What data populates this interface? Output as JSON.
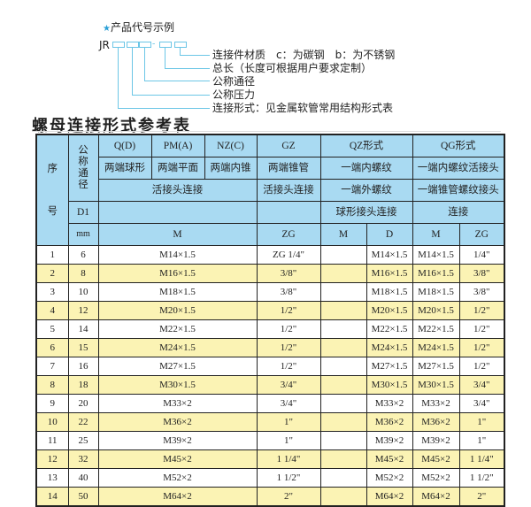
{
  "code_example": {
    "title": "产品代号示例",
    "prefix": "JR",
    "dash": "-",
    "labels": [
      "连接件材质　c：为碳钢　b：为不锈钢",
      "总长（长度可根据用户要求定制）",
      "公称通径",
      "公称压力",
      "连接形式：见金属软管常用结构形式表"
    ]
  },
  "table_title": "螺母连接形式参考表",
  "header": {
    "seq_top": "序",
    "seq_bottom": "号",
    "dn": "公称通径",
    "d1": "D1",
    "mm": "mm",
    "row1": [
      "Q(D)",
      "PM(A)",
      "NZ(C)",
      "GZ",
      "QZ形式",
      "QG形式"
    ],
    "row2": [
      "两端球形",
      "两端平面",
      "两端内锥",
      "两端锥管",
      "一端内螺纹",
      "一端内螺纹活接头"
    ],
    "row3": [
      "活接头连接",
      "活接头连接",
      "一端外螺纹",
      "一端锥管螺纹接头"
    ],
    "row4": [
      "",
      "",
      "球形接头连接",
      "连接"
    ],
    "row5": [
      "M",
      "ZG",
      "M",
      "D",
      "M",
      "ZG"
    ]
  },
  "rows": [
    [
      "1",
      "6",
      "M14×1.5",
      "ZG 1/4\"",
      "",
      "M14×1.5",
      "M14×1.5",
      "1/4\""
    ],
    [
      "2",
      "8",
      "M16×1.5",
      "3/8\"",
      "",
      "M16×1.5",
      "M16×1.5",
      "3/8\""
    ],
    [
      "3",
      "10",
      "M18×1.5",
      "3/8\"",
      "",
      "M18×1.5",
      "M18×1.5",
      "3/8\""
    ],
    [
      "4",
      "12",
      "M20×1.5",
      "1/2\"",
      "",
      "M20×1.5",
      "M20×1.5",
      "1/2\""
    ],
    [
      "5",
      "14",
      "M22×1.5",
      "1/2\"",
      "",
      "M22×1.5",
      "M22×1.5",
      "1/2\""
    ],
    [
      "6",
      "15",
      "M24×1.5",
      "1/2\"",
      "",
      "M24×1.5",
      "M24×1.5",
      "1/2\""
    ],
    [
      "7",
      "16",
      "M27×1.5",
      "1/2\"",
      "",
      "M27×1.5",
      "M27×1.5",
      "1/2\""
    ],
    [
      "8",
      "18",
      "M30×1.5",
      "3/4\"",
      "",
      "M30×1.5",
      "M30×1.5",
      "3/4\""
    ],
    [
      "9",
      "20",
      "M33×2",
      "3/4\"",
      "",
      "M33×2",
      "M33×2",
      "3/4\""
    ],
    [
      "10",
      "22",
      "M36×2",
      "1\"",
      "",
      "M36×2",
      "M36×2",
      "1\""
    ],
    [
      "11",
      "25",
      "M39×2",
      "1\"",
      "",
      "M39×2",
      "M39×2",
      "1\""
    ],
    [
      "12",
      "32",
      "M45×2",
      "1 1/4\"",
      "",
      "M45×2",
      "M45×2",
      "1 1/4\""
    ],
    [
      "13",
      "40",
      "M52×2",
      "1 1/2\"",
      "",
      "M52×2",
      "M52×2",
      "1 1/2\""
    ],
    [
      "14",
      "50",
      "M64×2",
      "2\"",
      "",
      "M64×2",
      "M64×2",
      "2\""
    ]
  ],
  "colors": {
    "header_bg": "#a9daf2",
    "alt_row_bg": "#fbf3b4",
    "line": "#6cc6e6",
    "star": "#2a9fd6"
  }
}
